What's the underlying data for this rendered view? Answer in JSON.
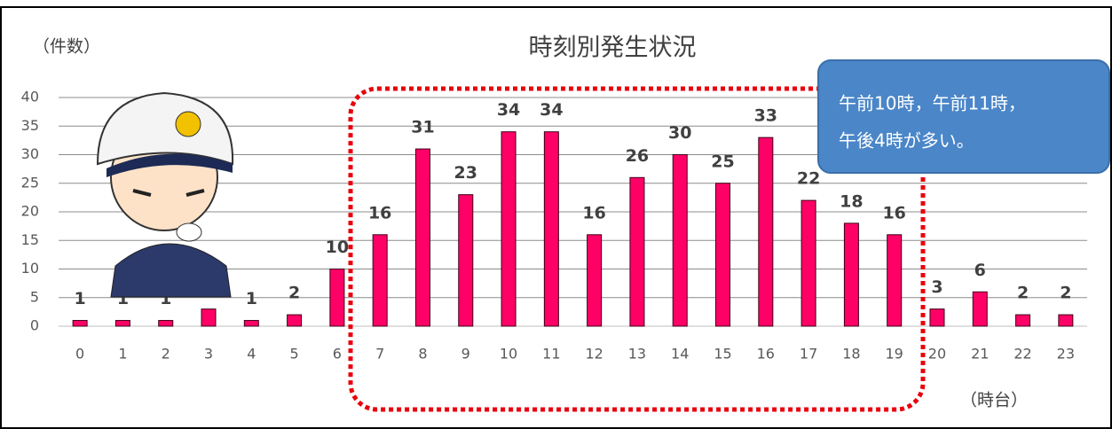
{
  "chart_data": {
    "type": "bar",
    "title": "時刻別発生状況",
    "y_label": "（件数）",
    "x_label": "（時台）",
    "annotation": [
      "午前10時，午前11時，",
      "午後4時が多い。"
    ],
    "categories": [
      "0",
      "1",
      "2",
      "3",
      "4",
      "5",
      "6",
      "7",
      "8",
      "9",
      "10",
      "11",
      "12",
      "13",
      "14",
      "15",
      "16",
      "17",
      "18",
      "19",
      "20",
      "21",
      "22",
      "23"
    ],
    "values": [
      1,
      1,
      1,
      3,
      1,
      2,
      10,
      16,
      31,
      23,
      34,
      34,
      16,
      26,
      30,
      25,
      33,
      22,
      18,
      16,
      3,
      6,
      2,
      2
    ],
    "color": "#ff0066",
    "ylim": [
      0,
      40
    ],
    "yticks": [
      0,
      5,
      10,
      15,
      20,
      25,
      30,
      35,
      40
    ],
    "grid": true
  }
}
